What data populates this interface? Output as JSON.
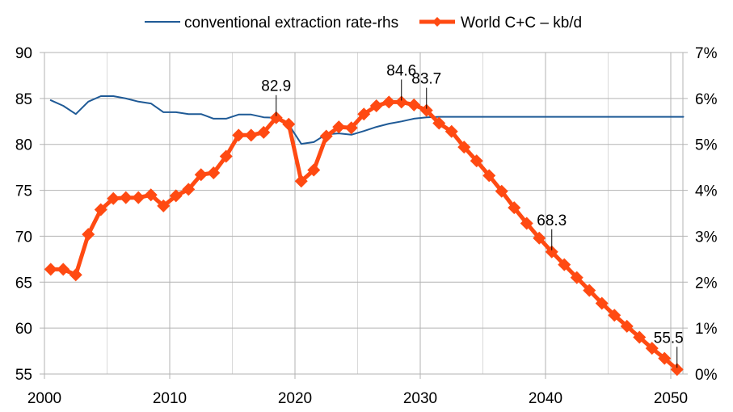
{
  "chart_data": {
    "type": "line",
    "title": "",
    "xlabel": "",
    "ylabel": "",
    "y2label": "",
    "grid": true,
    "legend_position": "top-center",
    "x_ticks": [
      2000,
      2010,
      2020,
      2030,
      2040,
      2050
    ],
    "x_tick_labels": [
      "2000",
      "2010",
      "2020",
      "2030",
      "2040",
      "2050"
    ],
    "xlim": [
      2000,
      2051
    ],
    "y_ticks": [
      55,
      60,
      65,
      70,
      75,
      80,
      85,
      90
    ],
    "y_tick_labels": [
      "55",
      "60",
      "65",
      "70",
      "75",
      "80",
      "85",
      "90"
    ],
    "ylim": [
      55,
      90
    ],
    "y2_ticks": [
      0,
      1,
      2,
      3,
      4,
      5,
      6,
      7
    ],
    "y2_tick_labels": [
      "0%",
      "1%",
      "2%",
      "3%",
      "4%",
      "5%",
      "6%",
      "7%"
    ],
    "y2lim": [
      0,
      7
    ],
    "series": [
      {
        "name": "conventional extraction rate-rhs",
        "axis": "right",
        "unit": "%",
        "color": "#1f5a96",
        "marker": "none",
        "x": [
          2000.5,
          2001.5,
          2002.5,
          2003.5,
          2004.5,
          2005.5,
          2006.5,
          2007.5,
          2008.5,
          2009.5,
          2010.5,
          2011.5,
          2012.5,
          2013.5,
          2014.5,
          2015.5,
          2016.5,
          2017.5,
          2018.5,
          2019.5,
          2020.5,
          2021.5,
          2022.5,
          2023.5,
          2024.5,
          2025.5,
          2026.5,
          2027.5,
          2028.5,
          2029.5,
          2030.5,
          2031.5,
          2032.5,
          2033.5,
          2034.5,
          2035.5,
          2036.5,
          2037.5,
          2038.5,
          2039.5,
          2040.5,
          2041.5,
          2042.5,
          2043.5,
          2044.5,
          2045.5,
          2046.5,
          2047.5,
          2048.5,
          2049.5,
          2050.5,
          2051
        ],
        "values": [
          5.96,
          5.84,
          5.66,
          5.93,
          6.05,
          6.05,
          6.0,
          5.93,
          5.89,
          5.7,
          5.7,
          5.66,
          5.66,
          5.56,
          5.56,
          5.65,
          5.65,
          5.59,
          5.58,
          5.43,
          5.01,
          5.05,
          5.22,
          5.24,
          5.21,
          5.29,
          5.38,
          5.45,
          5.5,
          5.56,
          5.59,
          5.6,
          5.6,
          5.6,
          5.6,
          5.6,
          5.6,
          5.6,
          5.6,
          5.6,
          5.6,
          5.6,
          5.6,
          5.6,
          5.6,
          5.6,
          5.6,
          5.6,
          5.6,
          5.6,
          5.6,
          5.6
        ]
      },
      {
        "name": "World C+C – kb/d",
        "axis": "left",
        "unit": "kb/d",
        "color": "#ff4a12",
        "marker": "diamond",
        "x": [
          2000.5,
          2001.5,
          2002.5,
          2003.5,
          2004.5,
          2005.5,
          2006.5,
          2007.5,
          2008.5,
          2009.5,
          2010.5,
          2011.5,
          2012.5,
          2013.5,
          2014.5,
          2015.5,
          2016.5,
          2017.5,
          2018.5,
          2019.5,
          2020.5,
          2021.5,
          2022.5,
          2023.5,
          2024.5,
          2025.5,
          2026.5,
          2027.5,
          2028.5,
          2029.5,
          2030.5,
          2031.5,
          2032.5,
          2033.5,
          2034.5,
          2035.5,
          2036.5,
          2037.5,
          2038.5,
          2039.5,
          2040.5,
          2041.5,
          2042.5,
          2043.5,
          2044.5,
          2045.5,
          2046.5,
          2047.5,
          2048.5,
          2049.5,
          2050.5
        ],
        "values": [
          66.4,
          66.4,
          65.8,
          70.2,
          72.9,
          74.1,
          74.2,
          74.2,
          74.5,
          73.3,
          74.4,
          75.1,
          76.7,
          76.9,
          78.7,
          81.0,
          81.0,
          81.3,
          82.9,
          82.2,
          76.0,
          77.2,
          80.9,
          81.9,
          81.8,
          83.3,
          84.2,
          84.6,
          84.6,
          84.3,
          83.7,
          82.3,
          81.4,
          79.7,
          78.2,
          76.6,
          74.9,
          73.1,
          71.4,
          69.8,
          68.3,
          66.9,
          65.5,
          64.1,
          62.7,
          61.4,
          60.2,
          59.0,
          57.8,
          56.7,
          55.5
        ]
      }
    ],
    "annotations": [
      {
        "series": 1,
        "x": 2018.5,
        "value": 82.9,
        "label": "82.9"
      },
      {
        "series": 1,
        "x": 2028.5,
        "value": 84.6,
        "label": "84.6"
      },
      {
        "series": 1,
        "x": 2030.5,
        "value": 83.7,
        "label": "83.7"
      },
      {
        "series": 1,
        "x": 2040.5,
        "value": 68.3,
        "label": "68.3"
      },
      {
        "series": 1,
        "x": 2050.5,
        "value": 55.5,
        "label": "55.5"
      }
    ]
  }
}
